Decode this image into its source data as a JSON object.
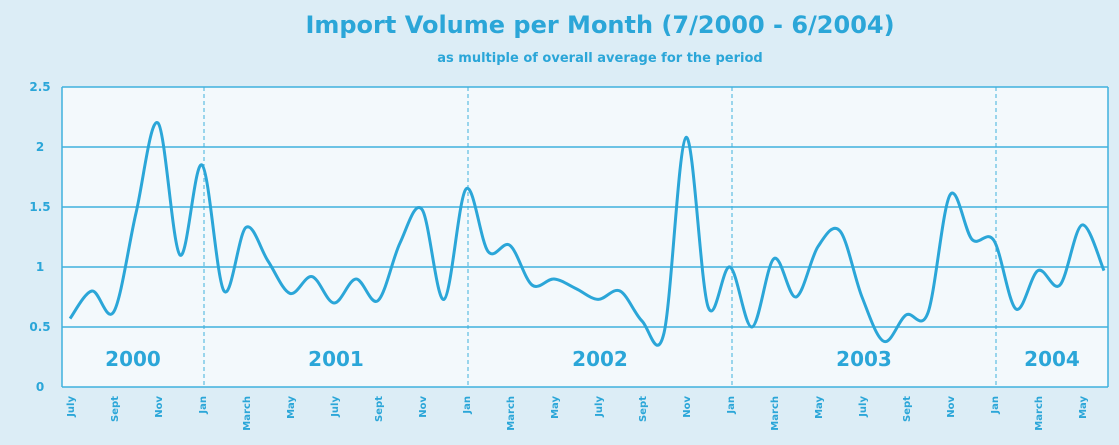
{
  "chart_data": {
    "type": "line",
    "title": "Import Volume per Month (7/2000 - 6/2004)",
    "subtitle": "as multiple of overall average for the period",
    "categories": [
      "July",
      null,
      "Sept",
      null,
      "Nov",
      null,
      "Jan",
      null,
      "March",
      null,
      "May",
      null,
      "July",
      null,
      "Sept",
      null,
      "Nov",
      null,
      "Jan",
      null,
      "March",
      null,
      "May",
      null,
      "July",
      null,
      "Sept",
      null,
      "Nov",
      null,
      "Jan",
      null,
      "March",
      null,
      "May",
      null,
      "July",
      null,
      "Sept",
      null,
      "Nov",
      null,
      "Jan",
      null,
      "March",
      null,
      "May",
      null
    ],
    "series": [
      {
        "name": "Import volume",
        "color": "#2ba6d8",
        "values": [
          0.57,
          0.8,
          0.63,
          1.45,
          2.2,
          1.1,
          1.85,
          0.8,
          1.33,
          1.05,
          0.78,
          0.92,
          0.7,
          0.9,
          0.72,
          1.2,
          1.48,
          0.73,
          1.65,
          1.13,
          1.18,
          0.85,
          0.9,
          0.82,
          0.73,
          0.8,
          0.55,
          0.45,
          2.08,
          0.67,
          1.0,
          0.5,
          1.07,
          0.75,
          1.17,
          1.3,
          0.75,
          0.38,
          0.6,
          0.62,
          1.6,
          1.23,
          1.22,
          0.65,
          0.97,
          0.85,
          1.35,
          0.97
        ]
      }
    ],
    "annotations": [
      "2000",
      "2001",
      "2002",
      "2003",
      "2004"
    ],
    "ylim": [
      0,
      2.5
    ],
    "yticks": [
      0,
      0.5,
      1,
      1.5,
      2,
      2.5
    ],
    "grid": true
  }
}
